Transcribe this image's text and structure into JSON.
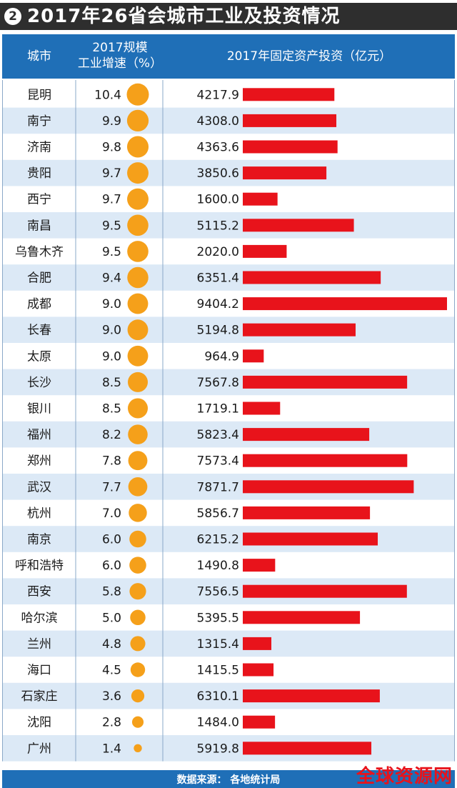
{
  "title": {
    "number": "2",
    "text": "2017年26省会城市工业及投资情况"
  },
  "header": {
    "city": "城市",
    "growth": "2017规模工业增速（%）",
    "investment": "2017年固定资产投资（亿元）"
  },
  "footer": {
    "source": "数据来源： 各地统计局"
  },
  "watermark": "全球资源网",
  "colors": {
    "header_bg": "#1f6fb7",
    "bar": "#e8131b",
    "dot": "#f5a01a",
    "row_alt": "#dce9f6"
  },
  "chart_data": {
    "type": "table",
    "columns": [
      "城市",
      "2017规模工业增速（%）",
      "2017年固定资产投资（亿元）"
    ],
    "categories": [
      "昆明",
      "南宁",
      "济南",
      "贵阳",
      "西宁",
      "南昌",
      "乌鲁木齐",
      "合肥",
      "成都",
      "长春",
      "太原",
      "长沙",
      "银川",
      "福州",
      "郑州",
      "武汉",
      "杭州",
      "南京",
      "呼和浩特",
      "西安",
      "哈尔滨",
      "兰州",
      "海口",
      "石家庄",
      "沈阳",
      "广州"
    ],
    "growth": [
      "10.4",
      "9.9",
      "9.8",
      "9.7",
      "9.7",
      "9.5",
      "9.5",
      "9.4",
      "9.0",
      "9.0",
      "9.0",
      "8.5",
      "8.5",
      "8.2",
      "7.8",
      "7.7",
      "7.0",
      "6.0",
      "6.0",
      "5.8",
      "5.0",
      "4.8",
      "4.5",
      "3.6",
      "2.8",
      "1.4"
    ],
    "investment": [
      "4217.9",
      "4308.0",
      "4363.6",
      "3850.6",
      "1600.0",
      "5115.2",
      "2020.0",
      "6351.4",
      "9404.2",
      "5194.8",
      "964.9",
      "7567.8",
      "1719.1",
      "5823.4",
      "7573.4",
      "7871.7",
      "5856.7",
      "6215.2",
      "1490.8",
      "7556.5",
      "5395.5",
      "1315.4",
      "1415.5",
      "6310.1",
      "1484.0",
      "5919.8"
    ]
  }
}
